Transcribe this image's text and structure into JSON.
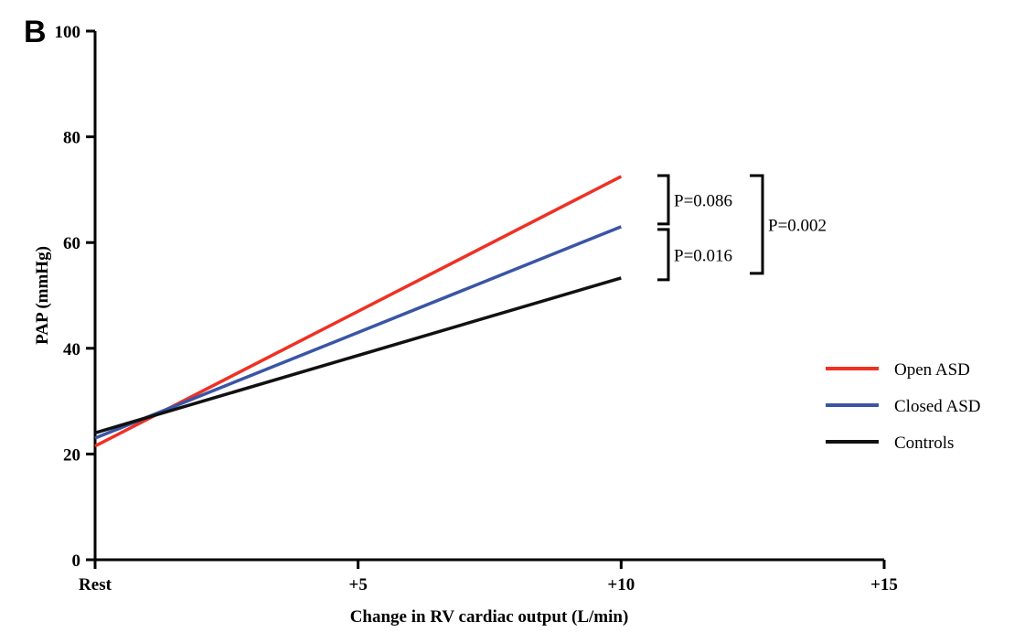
{
  "panel_label": "B",
  "chart_data": {
    "type": "line",
    "xlabel": "Change in RV cardiac output (L/min)",
    "ylabel": "PAP (mmHg)",
    "xlim": [
      0,
      15
    ],
    "ylim": [
      0,
      100
    ],
    "x_ticks": [
      {
        "value": 0,
        "label": "Rest"
      },
      {
        "value": 5,
        "label": "+5"
      },
      {
        "value": 10,
        "label": "+10"
      },
      {
        "value": 15,
        "label": "+15"
      }
    ],
    "y_ticks": [
      {
        "value": 0,
        "label": "0"
      },
      {
        "value": 20,
        "label": "20"
      },
      {
        "value": 40,
        "label": "40"
      },
      {
        "value": 60,
        "label": "60"
      },
      {
        "value": 80,
        "label": "80"
      },
      {
        "value": 100,
        "label": "100"
      }
    ],
    "series": [
      {
        "name": "Open ASD",
        "color": "#ee3124",
        "x": [
          0,
          10
        ],
        "y": [
          21.5,
          72.5
        ]
      },
      {
        "name": "Closed ASD",
        "color": "#3a55a6",
        "x": [
          0,
          10
        ],
        "y": [
          23,
          63
        ]
      },
      {
        "name": "Controls",
        "color": "#111111",
        "x": [
          0,
          10
        ],
        "y": [
          24,
          53.3
        ]
      }
    ],
    "legend_position": "right",
    "grid": false,
    "annotations": [
      {
        "text": "P=0.086",
        "between": [
          "Open ASD",
          "Closed ASD"
        ]
      },
      {
        "text": "P=0.016",
        "between": [
          "Closed ASD",
          "Controls"
        ]
      },
      {
        "text": "P=0.002",
        "between": [
          "Open ASD",
          "Controls"
        ]
      }
    ]
  }
}
